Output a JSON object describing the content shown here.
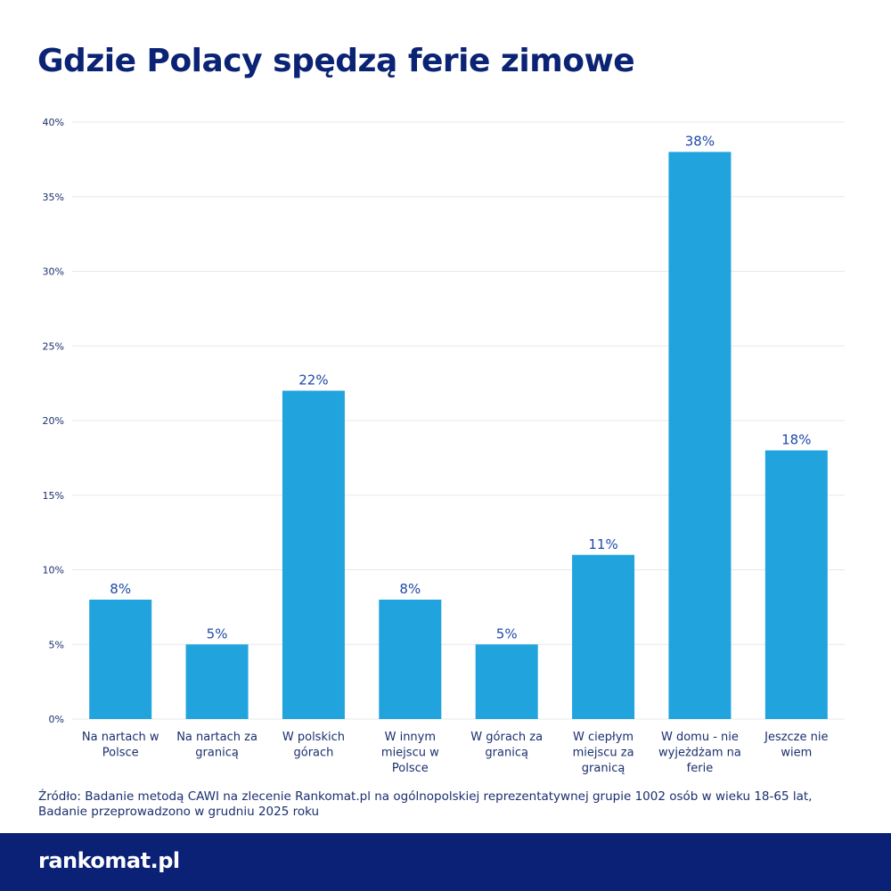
{
  "chart_data": {
    "type": "bar",
    "title": "Gdzie Polacy spędzą ferie zimowe",
    "categories": [
      [
        "Na nartach w",
        "Polsce"
      ],
      [
        "Na nartach za",
        "granicą"
      ],
      [
        "W polskich",
        "górach"
      ],
      [
        "W innym",
        "miejscu w",
        "Polsce"
      ],
      [
        "W górach za",
        "granicą"
      ],
      [
        "W ciepłym",
        "miejscu za",
        "granicą"
      ],
      [
        "W domu - nie",
        "wyjeżdżam na",
        "ferie"
      ],
      [
        "Jeszcze nie",
        "wiem"
      ]
    ],
    "values": [
      8,
      5,
      22,
      8,
      5,
      11,
      38,
      18
    ],
    "data_labels": [
      "8%",
      "5%",
      "22%",
      "8%",
      "5%",
      "11%",
      "38%",
      "18%"
    ],
    "yticks": [
      0,
      5,
      10,
      15,
      20,
      25,
      30,
      35,
      40
    ],
    "ytick_labels": [
      "0%",
      "5%",
      "10%",
      "15%",
      "20%",
      "25%",
      "30%",
      "35%",
      "40%"
    ],
    "ylim": [
      0,
      40
    ],
    "grid": true,
    "bar_color": "#21a3dd"
  },
  "source_lines": [
    "Źródło: Badanie metodą CAWI na zlecenie Rankomat.pl na ogólnopolskiej reprezentatywnej grupie 1002 osób w wieku 18-65 lat,",
    "Badanie przeprowadzono w grudniu 2025 roku"
  ],
  "logo": "rankomat.pl"
}
